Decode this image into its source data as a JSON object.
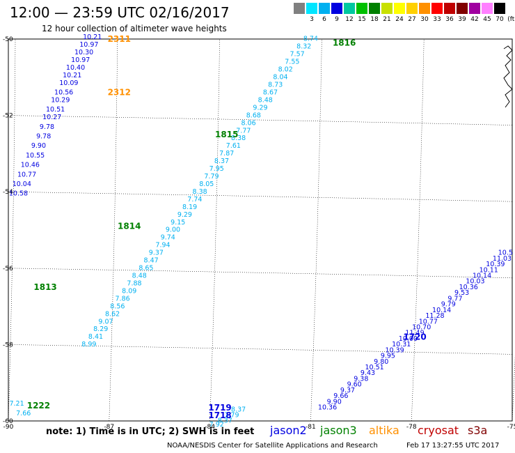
{
  "header": {
    "title": "12:00 — 23:59 UTC 02/16/2017",
    "subtitle": "12 hour collection of altimeter wave heights"
  },
  "scale": {
    "unit": "(ft)",
    "bins": [
      {
        "label": "",
        "color": "#808080"
      },
      {
        "label": "3",
        "color": "#00e5ff"
      },
      {
        "label": "6",
        "color": "#00b0f0"
      },
      {
        "label": "9",
        "color": "#0000e0"
      },
      {
        "label": "12",
        "color": "#00c8a0"
      },
      {
        "label": "15",
        "color": "#00c000"
      },
      {
        "label": "18",
        "color": "#008000"
      },
      {
        "label": "21",
        "color": "#c8e000"
      },
      {
        "label": "24",
        "color": "#ffff00"
      },
      {
        "label": "27",
        "color": "#ffd000"
      },
      {
        "label": "30",
        "color": "#ff9000"
      },
      {
        "label": "33",
        "color": "#ff0000"
      },
      {
        "label": "36",
        "color": "#c00000"
      },
      {
        "label": "39",
        "color": "#800000"
      },
      {
        "label": "42",
        "color": "#a000a0"
      },
      {
        "label": "45",
        "color": "#ff80ff"
      },
      {
        "label": "70",
        "color": "#000000"
      }
    ]
  },
  "axes": {
    "lon_ticks": [
      "-90",
      "-87",
      "-84",
      "-81",
      "-78",
      "-75"
    ],
    "lat_ticks": [
      "-50",
      "-52",
      "-54",
      "-56",
      "-58",
      "-60"
    ]
  },
  "passes": [
    {
      "label": "2311",
      "lon": -86.7,
      "lat": -50.0,
      "color": "#ff9000"
    },
    {
      "label": "2312",
      "lon": -86.7,
      "lat": -51.4,
      "color": "#ff9000"
    },
    {
      "label": "1816",
      "lon": -80.0,
      "lat": -50.1,
      "color": "#008000"
    },
    {
      "label": "1815",
      "lon": -83.5,
      "lat": -52.5,
      "color": "#008000"
    },
    {
      "label": "1814",
      "lon": -86.4,
      "lat": -54.9,
      "color": "#008000"
    },
    {
      "label": "1813",
      "lon": -88.9,
      "lat": -56.5,
      "color": "#008000"
    },
    {
      "label": "1720",
      "lon": -77.9,
      "lat": -57.8,
      "color": "#0000e0"
    },
    {
      "label": "1719",
      "lon": -83.7,
      "lat": -59.65,
      "color": "#0000e0"
    },
    {
      "label": "1718",
      "lon": -83.7,
      "lat": -59.85,
      "color": "#0000e0"
    },
    {
      "label": "1222",
      "lon": -89.1,
      "lat": -59.6,
      "color": "#008000"
    }
  ],
  "tracks": [
    {
      "name": "track-2311",
      "color": "#0000e0",
      "points": [
        {
          "lon": -87.5,
          "lat": -50.0,
          "v": "10.21"
        },
        {
          "lon": -87.6,
          "lat": -50.2,
          "v": "10.97"
        },
        {
          "lon": -87.75,
          "lat": -50.4,
          "v": "10.30"
        },
        {
          "lon": -87.85,
          "lat": -50.6,
          "v": "10.97"
        },
        {
          "lon": -88.0,
          "lat": -50.8,
          "v": "10.40"
        },
        {
          "lon": -88.1,
          "lat": -51.0,
          "v": "10.21"
        },
        {
          "lon": -88.2,
          "lat": -51.2,
          "v": "10.09"
        },
        {
          "lon": -88.35,
          "lat": -51.45,
          "v": "10.56"
        },
        {
          "lon": -88.45,
          "lat": -51.65,
          "v": "10.29"
        },
        {
          "lon": -88.6,
          "lat": -51.9,
          "v": "10.51"
        },
        {
          "lon": -88.7,
          "lat": -52.1,
          "v": "10.27"
        },
        {
          "lon": -88.85,
          "lat": -52.35,
          "v": "9.78"
        },
        {
          "lon": -88.95,
          "lat": -52.6,
          "v": "9.78"
        },
        {
          "lon": -89.1,
          "lat": -52.85,
          "v": "9.90"
        },
        {
          "lon": -89.2,
          "lat": -53.1,
          "v": "10.55"
        },
        {
          "lon": -89.35,
          "lat": -53.35,
          "v": "10.46"
        },
        {
          "lon": -89.45,
          "lat": -53.6,
          "v": "10.77"
        },
        {
          "lon": -89.6,
          "lat": -53.85,
          "v": "10.04"
        },
        {
          "lon": -89.7,
          "lat": -54.1,
          "v": "10.58"
        }
      ]
    },
    {
      "name": "track-1813-1816",
      "color": "#00b0f0",
      "points": [
        {
          "lon": -81.0,
          "lat": -50.05,
          "v": "8.74"
        },
        {
          "lon": -81.2,
          "lat": -50.25,
          "v": "8.32"
        },
        {
          "lon": -81.4,
          "lat": -50.45,
          "v": "7.57"
        },
        {
          "lon": -81.55,
          "lat": -50.65,
          "v": "7.55"
        },
        {
          "lon": -81.75,
          "lat": -50.85,
          "v": "8.02"
        },
        {
          "lon": -81.9,
          "lat": -51.05,
          "v": "8.04"
        },
        {
          "lon": -82.05,
          "lat": -51.25,
          "v": "8.73"
        },
        {
          "lon": -82.2,
          "lat": -51.45,
          "v": "8.67"
        },
        {
          "lon": -82.35,
          "lat": -51.65,
          "v": "8.48"
        },
        {
          "lon": -82.5,
          "lat": -51.85,
          "v": "9.29"
        },
        {
          "lon": -82.7,
          "lat": -52.05,
          "v": "8.68"
        },
        {
          "lon": -82.85,
          "lat": -52.25,
          "v": "8.06"
        },
        {
          "lon": -83.0,
          "lat": -52.45,
          "v": "7.77"
        },
        {
          "lon": -83.15,
          "lat": -52.65,
          "v": "8.38"
        },
        {
          "lon": -83.3,
          "lat": -52.85,
          "v": "7.61"
        },
        {
          "lon": -83.5,
          "lat": -53.05,
          "v": "7.87"
        },
        {
          "lon": -83.65,
          "lat": -53.25,
          "v": "8.37"
        },
        {
          "lon": -83.8,
          "lat": -53.45,
          "v": "7.95"
        },
        {
          "lon": -83.95,
          "lat": -53.65,
          "v": "7.79"
        },
        {
          "lon": -84.1,
          "lat": -53.85,
          "v": "8.05"
        },
        {
          "lon": -84.3,
          "lat": -54.05,
          "v": "8.38"
        },
        {
          "lon": -84.45,
          "lat": -54.25,
          "v": "7.74"
        },
        {
          "lon": -84.6,
          "lat": -54.45,
          "v": "8.19"
        },
        {
          "lon": -84.75,
          "lat": -54.65,
          "v": "9.29"
        },
        {
          "lon": -84.95,
          "lat": -54.85,
          "v": "9.15"
        },
        {
          "lon": -85.1,
          "lat": -55.05,
          "v": "9.00"
        },
        {
          "lon": -85.25,
          "lat": -55.25,
          "v": "9.74"
        },
        {
          "lon": -85.4,
          "lat": -55.45,
          "v": "7.94"
        },
        {
          "lon": -85.6,
          "lat": -55.65,
          "v": "9.37"
        },
        {
          "lon": -85.75,
          "lat": -55.85,
          "v": "8.47"
        },
        {
          "lon": -85.9,
          "lat": -56.05,
          "v": "8.65"
        },
        {
          "lon": -86.1,
          "lat": -56.25,
          "v": "8.48"
        },
        {
          "lon": -86.25,
          "lat": -56.45,
          "v": "7.88"
        },
        {
          "lon": -86.4,
          "lat": -56.65,
          "v": "8.09"
        },
        {
          "lon": -86.6,
          "lat": -56.85,
          "v": "7.86"
        },
        {
          "lon": -86.75,
          "lat": -57.05,
          "v": "8.56"
        },
        {
          "lon": -86.9,
          "lat": -57.25,
          "v": "8.62"
        },
        {
          "lon": -87.1,
          "lat": -57.45,
          "v": "9.07"
        },
        {
          "lon": -87.25,
          "lat": -57.65,
          "v": "8.29"
        },
        {
          "lon": -87.4,
          "lat": -57.85,
          "v": "8.41"
        },
        {
          "lon": -87.6,
          "lat": -58.05,
          "v": "8.99"
        }
      ]
    },
    {
      "name": "track-1718-1720",
      "color": "#0000e0",
      "points": [
        {
          "lon": -75.2,
          "lat": -55.65,
          "v": "10.5"
        },
        {
          "lon": -75.3,
          "lat": -55.8,
          "v": "11.03"
        },
        {
          "lon": -75.5,
          "lat": -55.95,
          "v": "10.39"
        },
        {
          "lon": -75.7,
          "lat": -56.1,
          "v": "10.11"
        },
        {
          "lon": -75.9,
          "lat": -56.25,
          "v": "10.14"
        },
        {
          "lon": -76.1,
          "lat": -56.4,
          "v": "10.03"
        },
        {
          "lon": -76.3,
          "lat": -56.55,
          "v": "10.36"
        },
        {
          "lon": -76.5,
          "lat": -56.7,
          "v": "9.53"
        },
        {
          "lon": -76.7,
          "lat": -56.85,
          "v": "9.77"
        },
        {
          "lon": -76.9,
          "lat": -57.0,
          "v": "9.79"
        },
        {
          "lon": -77.1,
          "lat": -57.15,
          "v": "10.14"
        },
        {
          "lon": -77.3,
          "lat": -57.3,
          "v": "11.28"
        },
        {
          "lon": -77.5,
          "lat": -57.45,
          "v": "10.77"
        },
        {
          "lon": -77.7,
          "lat": -57.6,
          "v": "10.70"
        },
        {
          "lon": -77.9,
          "lat": -57.75,
          "v": "11.49"
        },
        {
          "lon": -78.1,
          "lat": -57.9,
          "v": "10.00"
        },
        {
          "lon": -78.3,
          "lat": -58.05,
          "v": "10.31"
        },
        {
          "lon": -78.5,
          "lat": -58.2,
          "v": "10.39"
        },
        {
          "lon": -78.7,
          "lat": -58.35,
          "v": "9.95"
        },
        {
          "lon": -78.9,
          "lat": -58.5,
          "v": "9.80"
        },
        {
          "lon": -79.1,
          "lat": -58.65,
          "v": "10.51"
        },
        {
          "lon": -79.3,
          "lat": -58.8,
          "v": "9.43"
        },
        {
          "lon": -79.5,
          "lat": -58.95,
          "v": "9.38"
        },
        {
          "lon": -79.7,
          "lat": -59.1,
          "v": "9.60"
        },
        {
          "lon": -79.9,
          "lat": -59.25,
          "v": "9.37"
        },
        {
          "lon": -80.1,
          "lat": -59.4,
          "v": "9.66"
        },
        {
          "lon": -80.3,
          "lat": -59.55,
          "v": "9.90"
        },
        {
          "lon": -80.5,
          "lat": -59.7,
          "v": "10.36"
        }
      ]
    },
    {
      "name": "track-1718-tail",
      "color": "#00b0f0",
      "points": [
        {
          "lon": -83.15,
          "lat": -59.75,
          "v": "8.37"
        },
        {
          "lon": -83.35,
          "lat": -59.9,
          "v": "7.79"
        },
        {
          "lon": -83.55,
          "lat": -60.05,
          "v": "8.37"
        },
        {
          "lon": -83.8,
          "lat": -60.15,
          "v": "7.92"
        }
      ]
    },
    {
      "name": "track-1222",
      "color": "#00b0f0",
      "points": [
        {
          "lon": -89.75,
          "lat": -59.6,
          "v": "7.21"
        },
        {
          "lon": -89.55,
          "lat": -59.85,
          "v": "7.66"
        }
      ]
    }
  ],
  "footer": {
    "note": "note: 1) Time is in UTC; 2) SWH is in feet",
    "satellites": [
      {
        "name": "jason2",
        "color": "#0000e0"
      },
      {
        "name": "jason3",
        "color": "#008000"
      },
      {
        "name": "altika",
        "color": "#ff9000"
      },
      {
        "name": "cryosat",
        "color": "#c00000"
      },
      {
        "name": "s3a",
        "color": "#800000"
      }
    ],
    "credit": "NOAA/NESDIS Center for Satellite Applications and Research",
    "timestamp": "Feb 17 13:27:55 UTC 2017"
  }
}
